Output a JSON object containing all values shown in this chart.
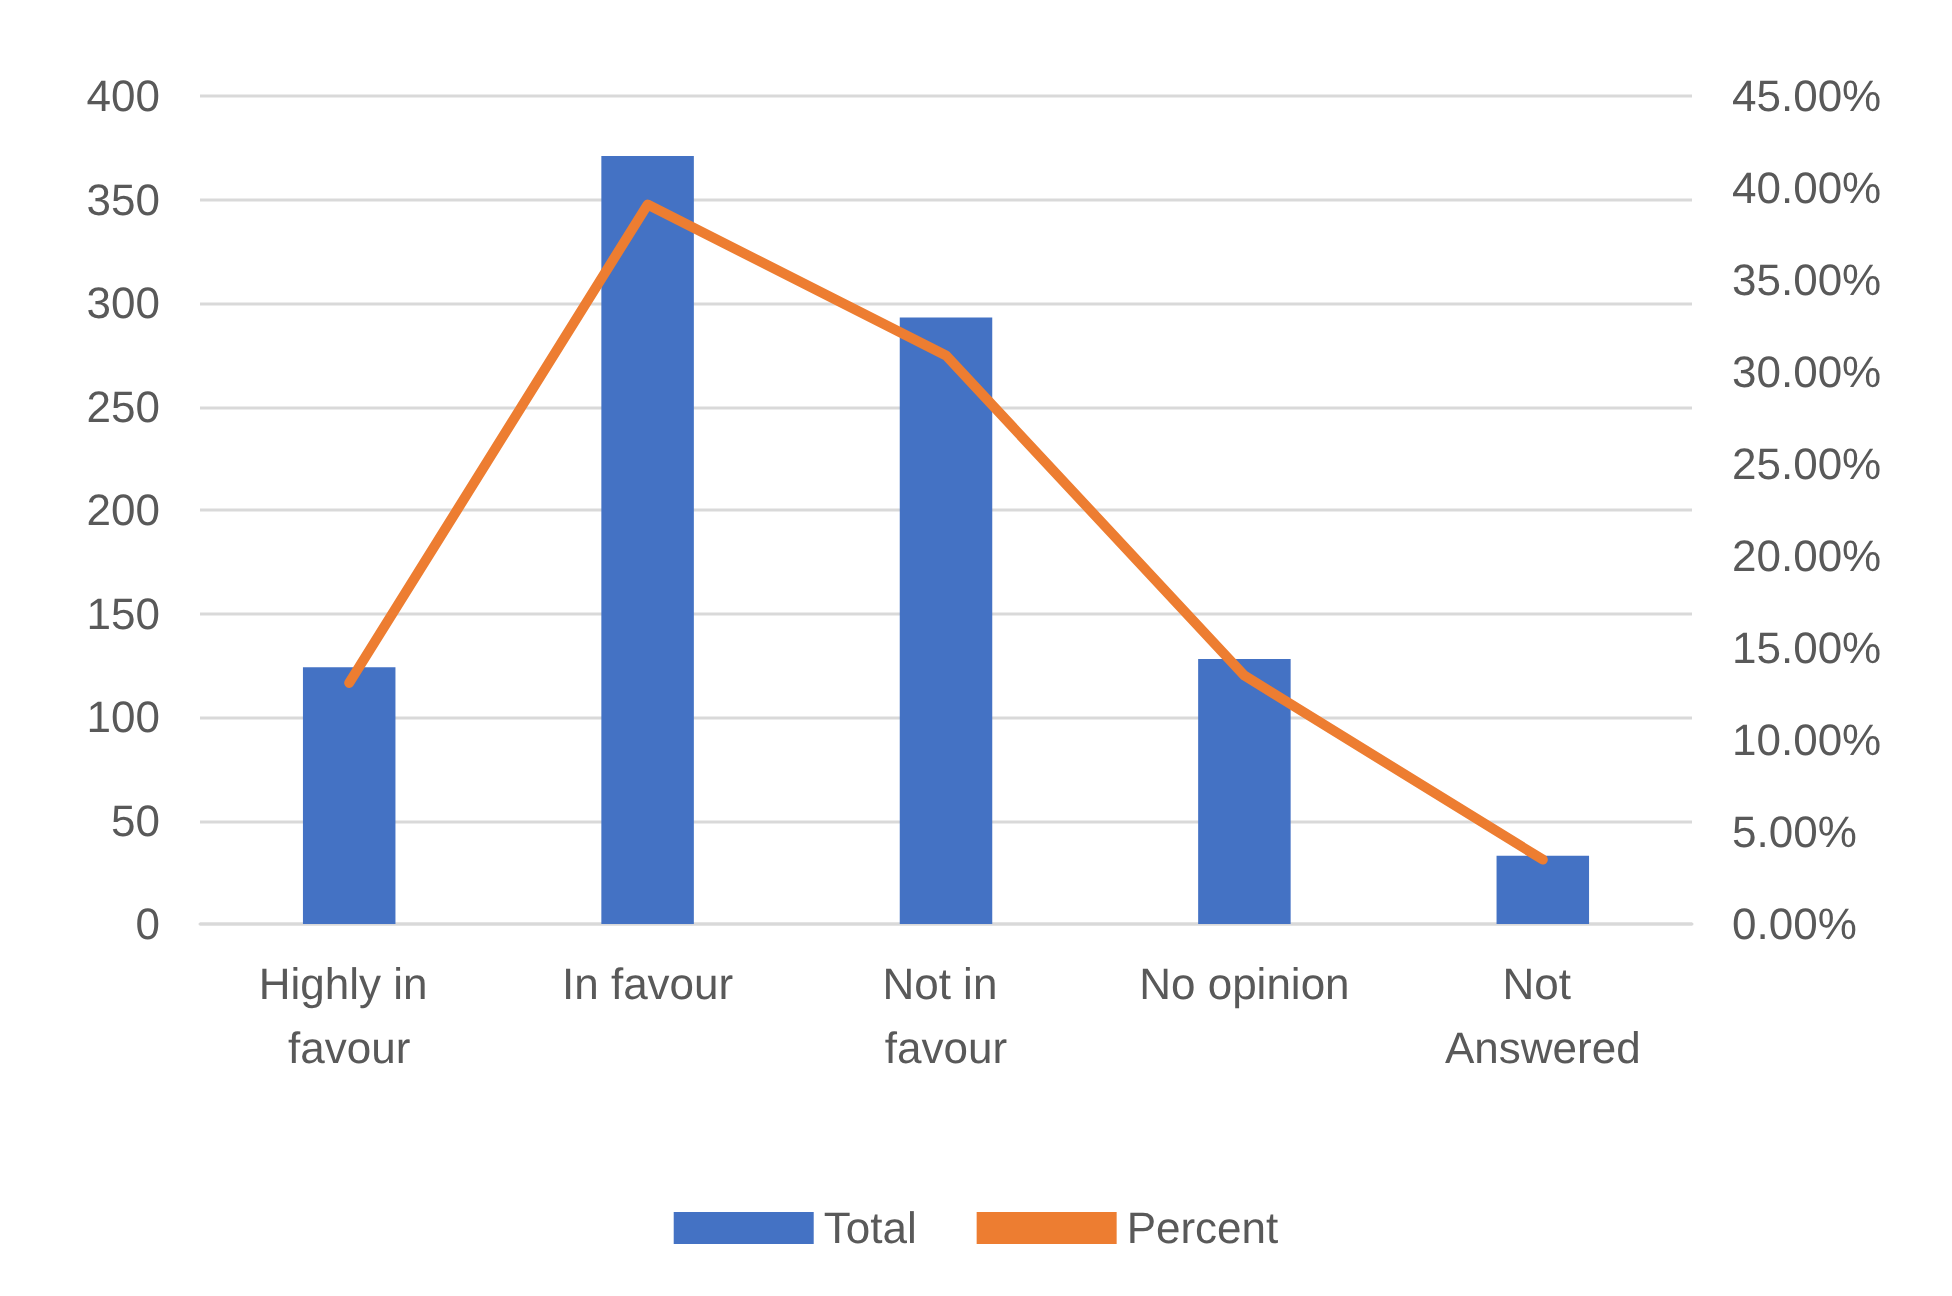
{
  "chart_data": {
    "type": "bar",
    "categories": [
      "Highly in favour",
      "In favour",
      "Not in favour",
      "No opinion",
      "Not Answered"
    ],
    "series": [
      {
        "name": "Total",
        "color": "#4472c4",
        "values": [
          124,
          371,
          293,
          128,
          33
        ]
      },
      {
        "name": "Percent",
        "type": "line",
        "axis": "y2",
        "color": "#ed7d31",
        "values": [
          13.1,
          39.1,
          30.9,
          13.5,
          3.5
        ]
      }
    ],
    "ylim": [
      0,
      400
    ],
    "yticks": [
      0,
      50,
      100,
      150,
      200,
      250,
      300,
      350,
      400
    ],
    "y2lim": [
      0,
      45
    ],
    "y2ticks": [
      {
        "value": 0,
        "label": "0.00%"
      },
      {
        "value": 5,
        "label": "5.00%"
      },
      {
        "value": 10,
        "label": "10.00%"
      },
      {
        "value": 15,
        "label": "15.00%"
      },
      {
        "value": 20,
        "label": "20.00%"
      },
      {
        "value": 25,
        "label": "25.00%"
      },
      {
        "value": 30,
        "label": "30.00%"
      },
      {
        "value": 35,
        "label": "35.00%"
      },
      {
        "value": 40,
        "label": "40.00%"
      },
      {
        "value": 45,
        "label": "45.00%"
      }
    ],
    "grid": "y",
    "legend": "bottom",
    "marker": "none",
    "line_style": "solid"
  }
}
